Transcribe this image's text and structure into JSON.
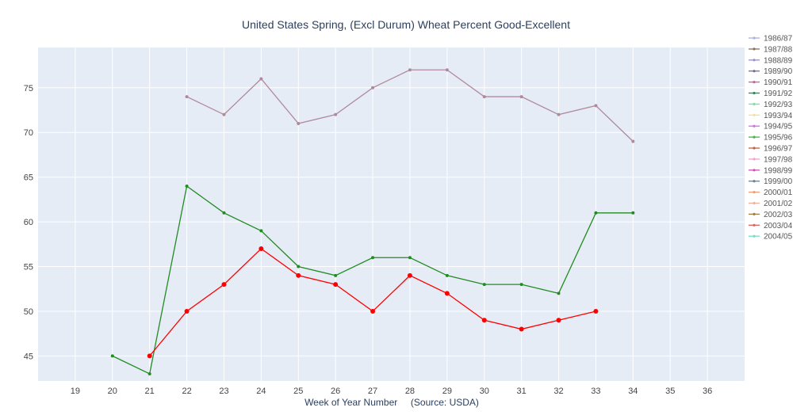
{
  "chart_data": {
    "type": "line",
    "title": "United States Spring, (Excl Durum) Wheat Percent Good-Excellent",
    "xlabel": "Week of Year Number     (Source: USDA)",
    "ylabel": "",
    "xlim": [
      18,
      37
    ],
    "ylim": [
      42.2,
      79.5
    ],
    "x_ticks": [
      19,
      20,
      21,
      22,
      23,
      24,
      25,
      26,
      27,
      28,
      29,
      30,
      31,
      32,
      33,
      34,
      35,
      36
    ],
    "y_ticks": [
      45,
      50,
      55,
      60,
      65,
      70,
      75
    ],
    "grid": true,
    "legend_position": "right",
    "series": [
      {
        "color": "#b08a9a",
        "marker_size": 2,
        "x": [
          22,
          23,
          24,
          25,
          26,
          27,
          28,
          29,
          30,
          31,
          32,
          33,
          34
        ],
        "y": [
          74,
          72,
          76,
          71,
          72,
          75,
          77,
          77,
          74,
          74,
          72,
          73,
          69
        ]
      },
      {
        "color": "#228b22",
        "marker_size": 2,
        "x": [
          20,
          21,
          22,
          23,
          24,
          25,
          26,
          27,
          28,
          29,
          30,
          31,
          32,
          33,
          34
        ],
        "y": [
          45,
          43,
          64,
          61,
          59,
          55,
          54,
          56,
          56,
          54,
          53,
          53,
          52,
          61,
          61
        ]
      },
      {
        "color": "#ff0000",
        "marker_size": 3,
        "x": [
          21,
          22,
          23,
          24,
          25,
          26,
          27,
          28,
          29,
          30,
          31,
          32,
          33
        ],
        "y": [
          45,
          50,
          53,
          57,
          54,
          53,
          50,
          54,
          52,
          49,
          48,
          49,
          50
        ]
      }
    ],
    "legend": [
      {
        "name": "1986/87",
        "color": "#aab0e0"
      },
      {
        "name": "1987/88",
        "color": "#8b7355"
      },
      {
        "name": "1988/89",
        "color": "#9a8fd0"
      },
      {
        "name": "1989/90",
        "color": "#7a6a9a"
      },
      {
        "name": "1990/91",
        "color": "#d0609a"
      },
      {
        "name": "1991/92",
        "color": "#2e8b57"
      },
      {
        "name": "1992/93",
        "color": "#7ee0a0"
      },
      {
        "name": "1993/94",
        "color": "#f0e0a0"
      },
      {
        "name": "1994/95",
        "color": "#d070e0"
      },
      {
        "name": "1995/96",
        "color": "#4caf50"
      },
      {
        "name": "1996/97",
        "color": "#c0604a"
      },
      {
        "name": "1997/98",
        "color": "#f0a0d0"
      },
      {
        "name": "1998/99",
        "color": "#d050b0"
      },
      {
        "name": "1999/00",
        "color": "#708090"
      },
      {
        "name": "2000/01",
        "color": "#f0a070"
      },
      {
        "name": "2001/02",
        "color": "#f0b0a0"
      },
      {
        "name": "2002/03",
        "color": "#a08040"
      },
      {
        "name": "2003/04",
        "color": "#e06060"
      },
      {
        "name": "2004/05",
        "color": "#70e0c0"
      }
    ]
  }
}
